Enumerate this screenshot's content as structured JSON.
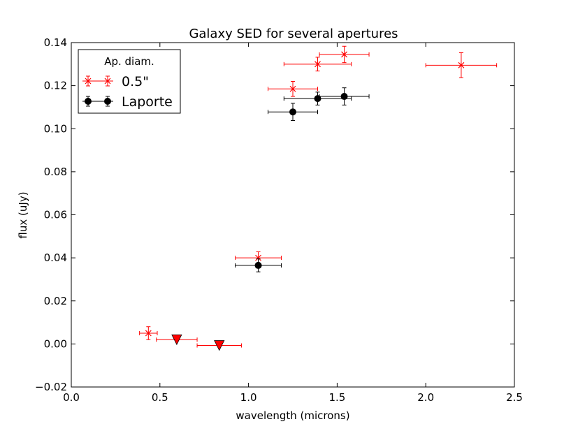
{
  "chart_data": {
    "type": "scatter",
    "title": "Galaxy SED for several apertures",
    "xlabel": "wavelength (microns)",
    "ylabel": "flux (uJy)",
    "xlim": [
      0.0,
      2.5
    ],
    "ylim": [
      -0.02,
      0.14
    ],
    "x_ticks": [
      "0.0",
      "0.5",
      "1.0",
      "1.5",
      "2.0",
      "2.5"
    ],
    "x_tick_values": [
      0.0,
      0.5,
      1.0,
      1.5,
      2.0,
      2.5
    ],
    "y_ticks": [
      "−0.02",
      "0.00",
      "0.02",
      "0.04",
      "0.06",
      "0.08",
      "0.10",
      "0.12",
      "0.14"
    ],
    "y_tick_values": [
      -0.02,
      0.0,
      0.02,
      0.04,
      0.06,
      0.08,
      0.1,
      0.12,
      0.14
    ],
    "grid": false,
    "legend": {
      "title": "Ap. diam.",
      "placement": "top-left",
      "entries": [
        "0.5\"",
        "Laporte"
      ]
    },
    "series": [
      {
        "name": "0.5\"",
        "color": "#ff0000",
        "marker": "x",
        "points": [
          {
            "x": 0.435,
            "y": 0.005,
            "xerr": 0.05,
            "yerr": 0.003
          },
          {
            "x": 1.055,
            "y": 0.04,
            "xerr": 0.13,
            "yerr": 0.0028
          },
          {
            "x": 1.25,
            "y": 0.1185,
            "xerr": 0.14,
            "yerr": 0.0035
          },
          {
            "x": 1.39,
            "y": 0.13,
            "xerr": 0.19,
            "yerr": 0.0032
          },
          {
            "x": 1.54,
            "y": 0.1345,
            "xerr": 0.14,
            "yerr": 0.0038
          },
          {
            "x": 2.2,
            "y": 0.1295,
            "xerr": 0.2,
            "yerr": 0.0058
          }
        ],
        "upper_limits": [
          {
            "x": 0.595,
            "y": 0.002,
            "xerr": 0.115
          },
          {
            "x": 0.835,
            "y": -0.0007,
            "xerr": 0.125
          }
        ]
      },
      {
        "name": "Laporte",
        "color": "#000000",
        "marker": "o",
        "points": [
          {
            "x": 1.055,
            "y": 0.0365,
            "xerr": 0.13,
            "yerr": 0.003
          },
          {
            "x": 1.25,
            "y": 0.1078,
            "xerr": 0.14,
            "yerr": 0.004
          },
          {
            "x": 1.39,
            "y": 0.114,
            "xerr": 0.19,
            "yerr": 0.003
          },
          {
            "x": 1.54,
            "y": 0.115,
            "xerr": 0.14,
            "yerr": 0.004
          }
        ]
      }
    ]
  }
}
